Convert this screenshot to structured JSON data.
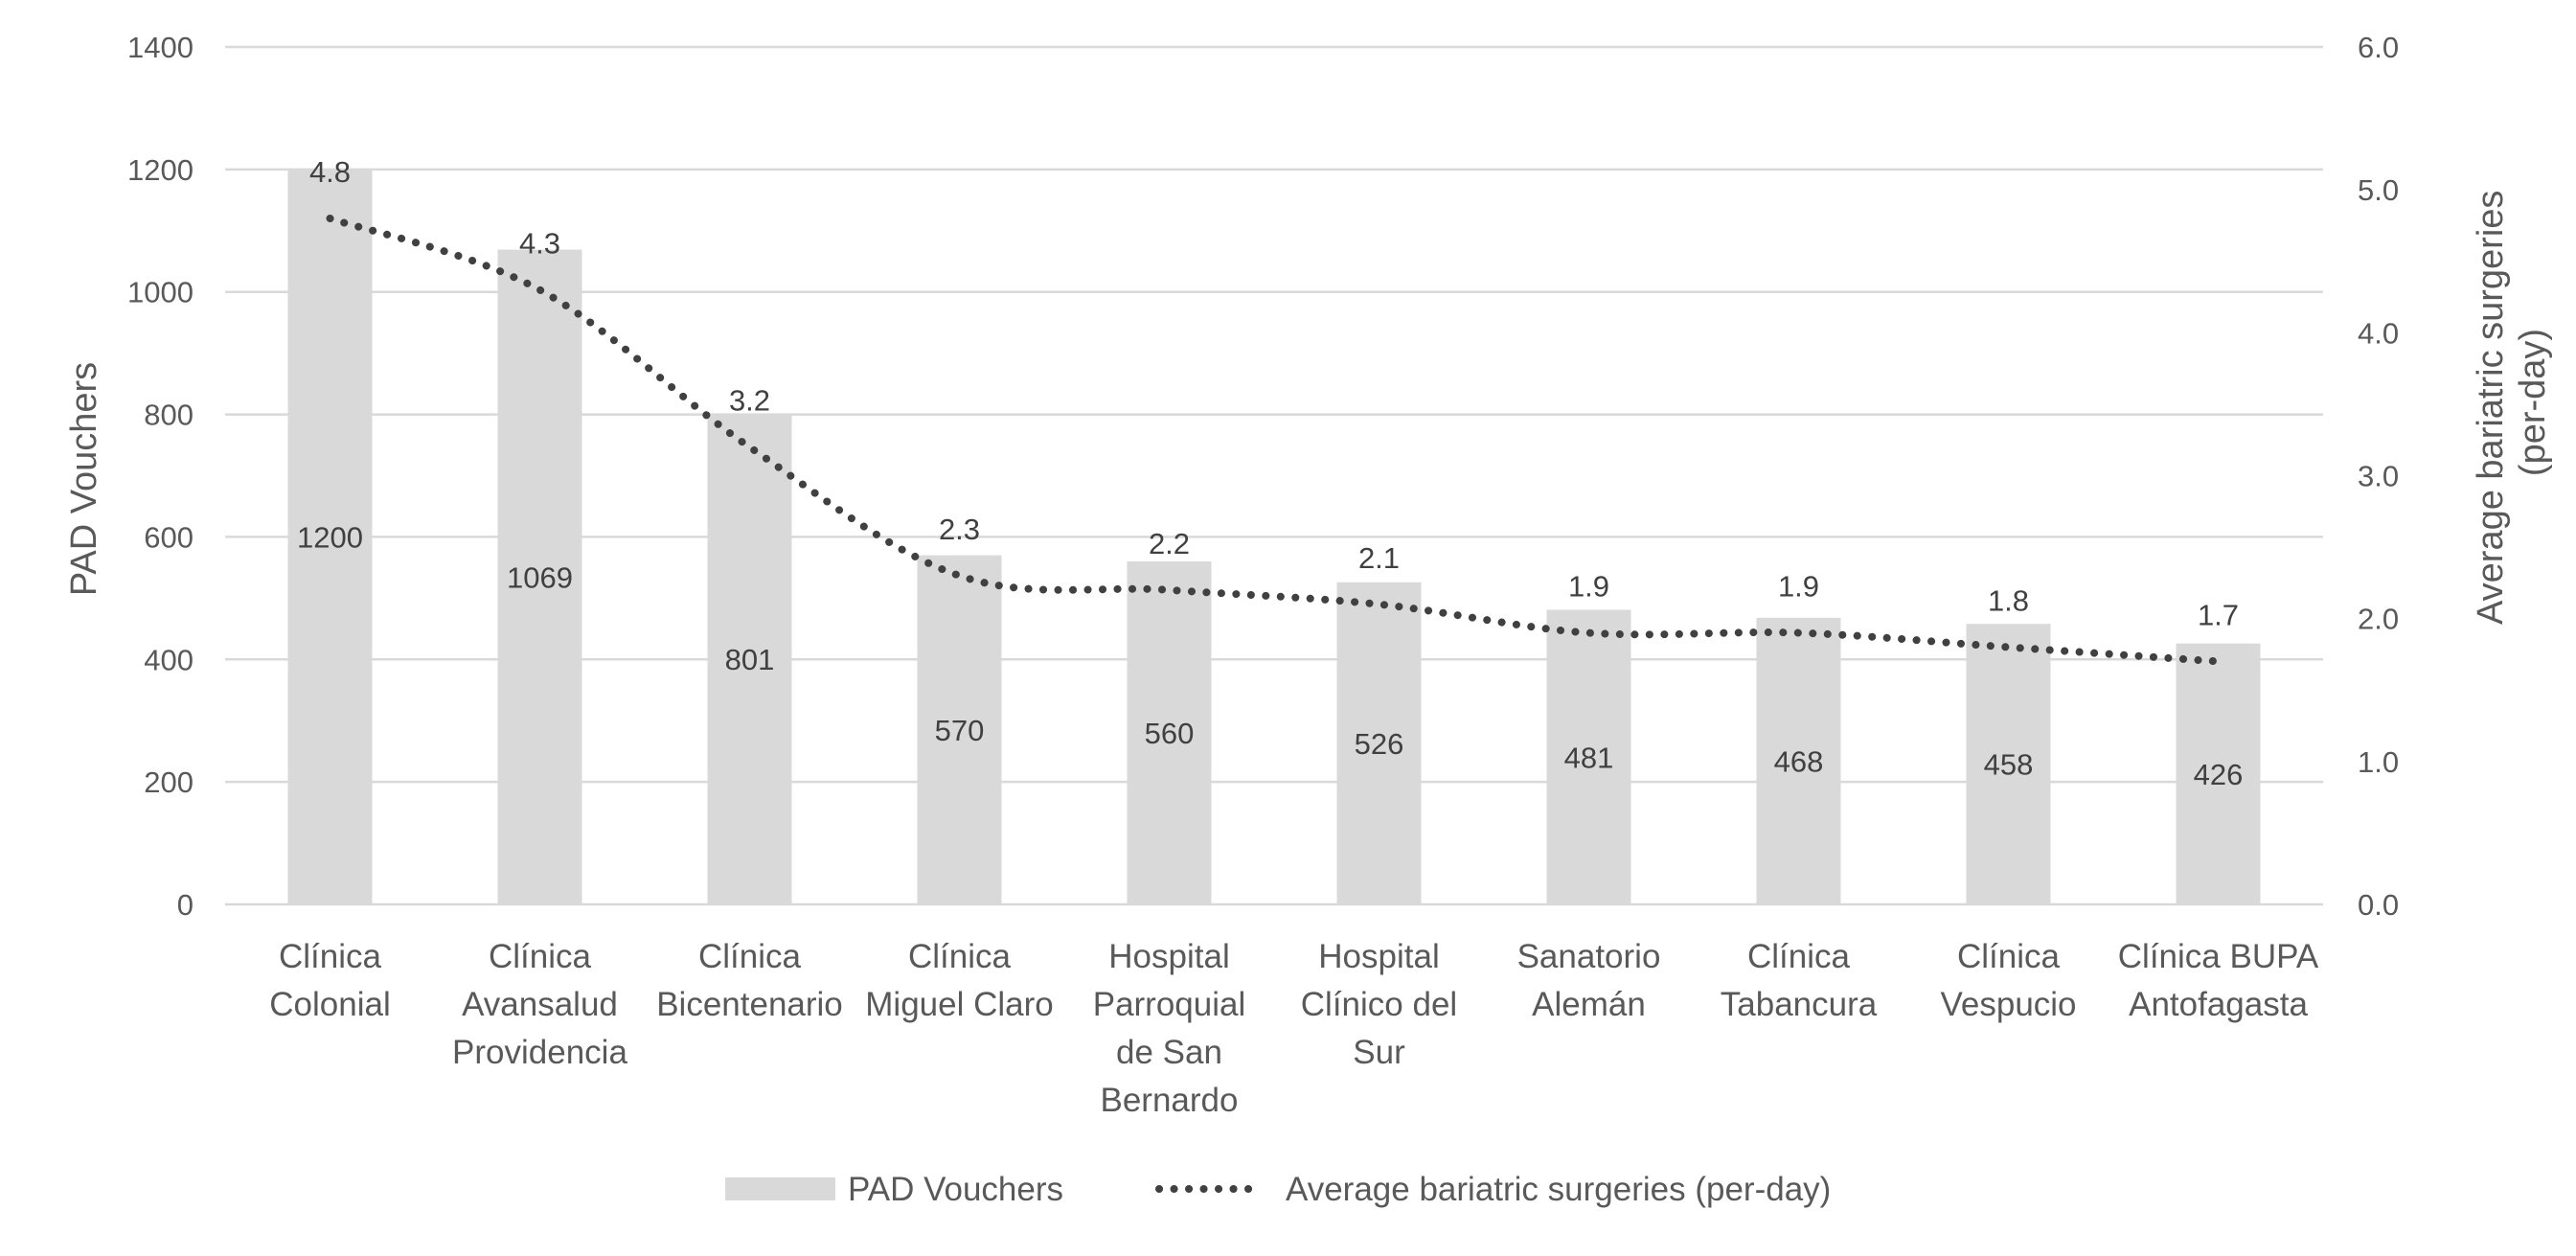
{
  "chart_data": {
    "type": "bar",
    "categories": [
      [
        "Clínica",
        "Colonial"
      ],
      [
        "Clínica",
        "Avansalud",
        "Providencia"
      ],
      [
        "Clínica",
        "Bicentenario"
      ],
      [
        "Clínica",
        "Miguel Claro"
      ],
      [
        "Hospital",
        "Parroquial",
        "de San",
        "Bernardo"
      ],
      [
        "Hospital",
        "Clínico del",
        "Sur"
      ],
      [
        "Sanatorio",
        "Alemán"
      ],
      [
        "Clínica",
        "Tabancura"
      ],
      [
        "Clínica",
        "Vespucio"
      ],
      [
        "Clínica BUPA",
        "Antofagasta"
      ]
    ],
    "series": [
      {
        "name": "PAD Vouchers",
        "type": "bar",
        "axis": "left",
        "color": "#d9d9d9",
        "values": [
          1200,
          1069,
          801,
          570,
          560,
          526,
          481,
          468,
          458,
          426
        ],
        "labels": [
          "1200",
          "1069",
          "801",
          "570",
          "560",
          "526",
          "481",
          "468",
          "458",
          "426"
        ]
      },
      {
        "name": "Average bariatric surgeries (per-day)",
        "type": "line",
        "style": "dotted",
        "axis": "right",
        "color": "#404040",
        "values": [
          4.8,
          4.3,
          3.2,
          2.3,
          2.2,
          2.1,
          1.9,
          1.9,
          1.8,
          1.7
        ],
        "labels": [
          "4.8",
          "4.3",
          "3.2",
          "2.3",
          "2.2",
          "2.1",
          "1.9",
          "1.9",
          "1.8",
          "1.7"
        ]
      }
    ],
    "y_left": {
      "label": "PAD Vouchers",
      "range": [
        0,
        1400
      ],
      "ticks": [
        "0",
        "200",
        "400",
        "600",
        "800",
        "1000",
        "1200",
        "1400"
      ]
    },
    "y_right": {
      "label_lines": [
        "Average bariatric surgeries",
        "(per-day)"
      ],
      "range": [
        0,
        6
      ],
      "ticks": [
        "0.0",
        "1.0",
        "2.0",
        "3.0",
        "4.0",
        "5.0",
        "6.0"
      ]
    },
    "grid": true,
    "legend_position": "bottom",
    "title": ""
  }
}
